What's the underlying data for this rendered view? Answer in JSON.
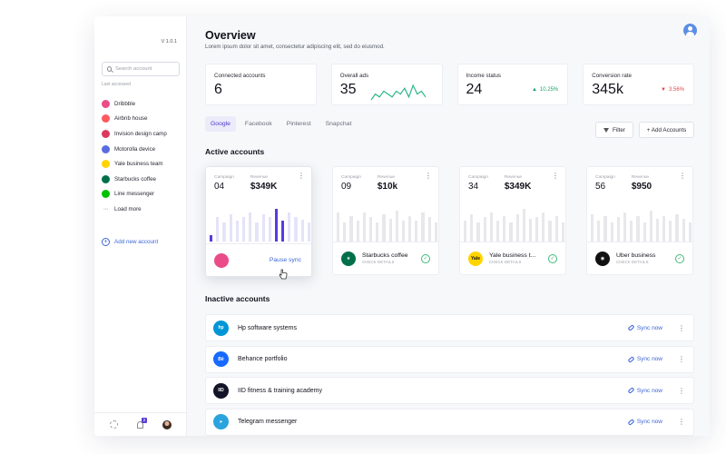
{
  "sidebar": {
    "version": "V 1.0.1",
    "search_placeholder": "Search account",
    "last_accessed_label": "Last accessed",
    "items": [
      {
        "label": "Dribbble",
        "color": "#ea4c89",
        "glyph": ""
      },
      {
        "label": "Airbnb house",
        "color": "#ff5a5f",
        "glyph": ""
      },
      {
        "label": "Invision design camp",
        "color": "#dc395f",
        "glyph": ""
      },
      {
        "label": "Motorolla device",
        "color": "#5b6ce0",
        "glyph": ""
      },
      {
        "label": "Yale business team",
        "color": "#ffd400",
        "glyph": ""
      },
      {
        "label": "Starbucks coffee",
        "color": "#00704a",
        "glyph": ""
      },
      {
        "label": "Line messenger",
        "color": "#00c300",
        "glyph": ""
      },
      {
        "label": "Load more",
        "color": "",
        "glyph": "···"
      }
    ],
    "add_new": "Add new account",
    "notification_count": "2"
  },
  "header": {
    "title": "Overview",
    "subtitle": "Lorem ipsum dolor sit amet, consectetur adipiscing elit, sed do eiusmod."
  },
  "stats": [
    {
      "label": "Connected accounts",
      "value": "6"
    },
    {
      "label": "Overall ads",
      "value": "35",
      "sparkline": [
        4,
        6,
        5,
        7,
        6,
        5,
        7,
        6,
        8,
        5,
        9,
        6,
        7,
        5
      ]
    },
    {
      "label": "Income status",
      "value": "24",
      "change": "10.25%",
      "direction": "up"
    },
    {
      "label": "Conversion rate",
      "value": "345k",
      "change": "3.56%",
      "direction": "down"
    }
  ],
  "tabs": [
    "Google",
    "Facebook",
    "Pinterest",
    "Snapchat"
  ],
  "toolbar": {
    "filter": "Filter",
    "add": "+ Add Accounts"
  },
  "active_title": "Active accounts",
  "inactive_title": "Inactive accounts",
  "cards": [
    {
      "campaign_label": "Campaign",
      "revenue_label": "Revenue",
      "campaign": "04",
      "revenue": "$349K",
      "name": "",
      "sub": "",
      "action": "Pause sync",
      "logo_color": "#ea4c89",
      "logo_text": "",
      "bars": [
        0.18,
        0.7,
        0.55,
        0.8,
        0.6,
        0.72,
        0.85,
        0.55,
        0.78,
        0.7,
        0.95,
        0.6,
        0.85,
        0.72,
        0.62,
        0.55
      ],
      "highlight": [
        0,
        10,
        11
      ]
    },
    {
      "campaign_label": "Campaign",
      "revenue_label": "Revenue",
      "campaign": "09",
      "revenue": "$10k",
      "name": "Starbucks coffee",
      "sub": "CHECK DETAILS",
      "logo_color": "#00704a",
      "logo_text": "★",
      "bars": [
        0.85,
        0.55,
        0.75,
        0.6,
        0.85,
        0.7,
        0.55,
        0.8,
        0.65,
        0.9,
        0.6,
        0.75,
        0.6,
        0.85,
        0.7,
        0.55
      ],
      "highlight": []
    },
    {
      "campaign_label": "Campaign",
      "revenue_label": "Revenue",
      "campaign": "34",
      "revenue": "$349K",
      "name": "Yale business t...",
      "sub": "CHECK DETAILS",
      "logo_color": "#ffd400",
      "logo_text": "Yale",
      "bars": [
        0.6,
        0.8,
        0.55,
        0.7,
        0.85,
        0.6,
        0.75,
        0.55,
        0.8,
        0.95,
        0.65,
        0.7,
        0.85,
        0.6,
        0.75,
        0.55
      ],
      "highlight": []
    },
    {
      "campaign_label": "Campaign",
      "revenue_label": "Revenue",
      "campaign": "56",
      "revenue": "$950",
      "name": "Uber business",
      "sub": "CHECK DETAILS",
      "logo_color": "#111111",
      "logo_text": "◉",
      "bars": [
        0.8,
        0.6,
        0.75,
        0.55,
        0.7,
        0.85,
        0.6,
        0.75,
        0.55,
        0.9,
        0.65,
        0.75,
        0.6,
        0.8,
        0.65,
        0.55
      ],
      "highlight": []
    }
  ],
  "inactive": [
    {
      "name": "Hp software systems",
      "action": "Sync now",
      "logo_color": "#0096d6",
      "logo_text": "hp"
    },
    {
      "name": "Behance portfolio",
      "action": "Sync now",
      "logo_color": "#1769ff",
      "logo_text": "Bē"
    },
    {
      "name": "IID fitness & training academy",
      "action": "Sync now",
      "logo_color": "#141428",
      "logo_text": "IID"
    },
    {
      "name": "Telegram messenger",
      "action": "Sync now",
      "logo_color": "#2aa3df",
      "logo_text": "➤"
    }
  ]
}
